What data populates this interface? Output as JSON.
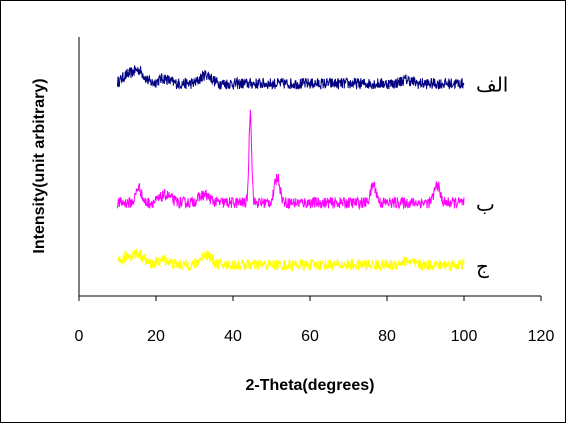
{
  "chart_data": {
    "type": "line",
    "title": "",
    "xlabel": "2-Theta(degrees)",
    "ylabel": "Intensity(unit arbitrary)",
    "xlim": [
      0,
      120
    ],
    "x_ticks": [
      "0",
      "20",
      "40",
      "60",
      "80",
      "100",
      "120"
    ],
    "grid": false,
    "legend": "none",
    "series": [
      {
        "name": "الف",
        "color": "#000080",
        "level": 0.82,
        "noise": 0.022,
        "peaks": [
          [
            12.5,
            0.03
          ],
          [
            15.5,
            0.05
          ],
          [
            22,
            0.02
          ],
          [
            33,
            0.035
          ],
          [
            85,
            0.015
          ]
        ]
      },
      {
        "name": "ب",
        "color": "#ff00ff",
        "level": 0.36,
        "noise": 0.022,
        "peaks": [
          [
            15.5,
            0.06
          ],
          [
            22.5,
            0.03
          ],
          [
            32.5,
            0.03
          ],
          [
            44.5,
            0.35
          ],
          [
            51.5,
            0.1
          ],
          [
            76.5,
            0.07
          ],
          [
            93,
            0.07
          ]
        ]
      },
      {
        "name": "ج",
        "color": "#ffff00",
        "level": 0.12,
        "noise": 0.022,
        "peaks": [
          [
            12.5,
            0.03
          ],
          [
            15.5,
            0.04
          ],
          [
            22,
            0.02
          ],
          [
            33,
            0.04
          ],
          [
            85,
            0.015
          ]
        ]
      }
    ]
  }
}
